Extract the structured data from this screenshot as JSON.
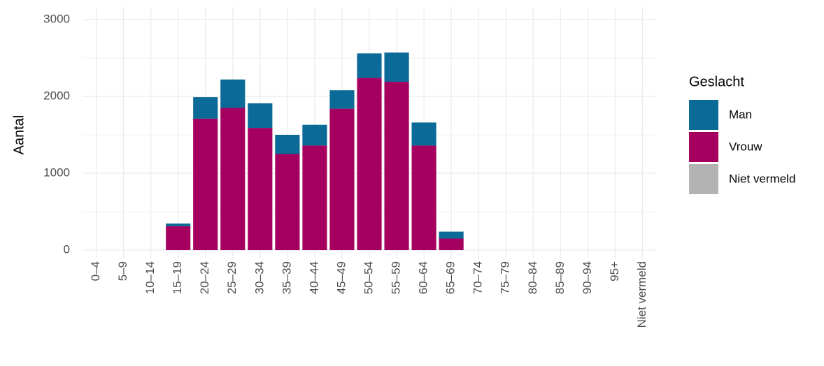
{
  "chart_data": {
    "type": "bar",
    "stacked": true,
    "y_label": "Aantal",
    "categories": [
      "0–4",
      "5–9",
      "10–14",
      "15–19",
      "20–24",
      "25–29",
      "30–34",
      "35–39",
      "40–44",
      "45–49",
      "50–54",
      "55–59",
      "60–64",
      "65–69",
      "70–74",
      "75–79",
      "80–84",
      "85–89",
      "90–94",
      "95+",
      "Niet vermeld"
    ],
    "series": [
      {
        "name": "Man",
        "color": "#0b6a97",
        "values": [
          0,
          0,
          0,
          35,
          280,
          370,
          320,
          250,
          270,
          240,
          320,
          380,
          300,
          90,
          0,
          0,
          0,
          0,
          0,
          0,
          0
        ]
      },
      {
        "name": "Vrouw",
        "color": "#a5005f",
        "values": [
          0,
          0,
          0,
          310,
          1710,
          1850,
          1590,
          1250,
          1360,
          1840,
          2240,
          2190,
          1360,
          150,
          0,
          0,
          0,
          0,
          0,
          0,
          0
        ]
      },
      {
        "name": "Niet vermeld",
        "color": "#b3b3b3",
        "values": [
          0,
          0,
          0,
          0,
          0,
          0,
          0,
          0,
          0,
          0,
          0,
          0,
          0,
          0,
          0,
          0,
          0,
          0,
          0,
          0,
          0
        ]
      }
    ],
    "legend_title": "Geslacht",
    "legend_position": "right",
    "ylim": [
      0,
      3000
    ],
    "yticks": [
      0,
      1000,
      2000,
      3000
    ],
    "grid": true
  }
}
